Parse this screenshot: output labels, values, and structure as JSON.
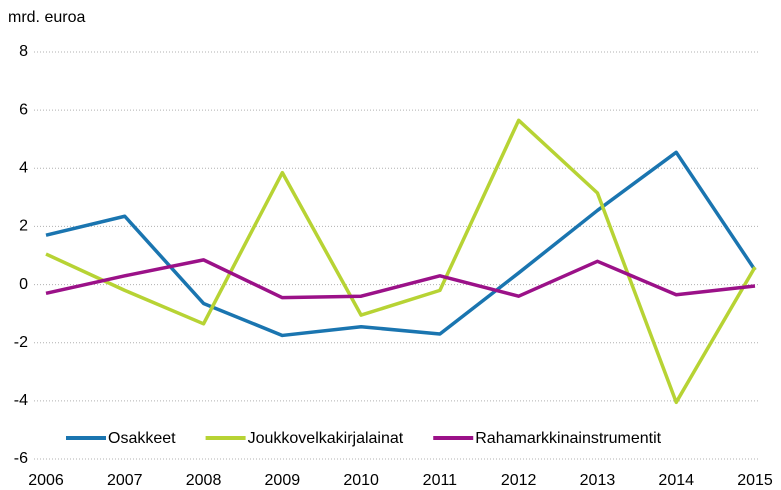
{
  "chart_data": {
    "type": "line",
    "y_label": "mrd. euroa",
    "x": [
      2006,
      2007,
      2008,
      2009,
      2010,
      2011,
      2012,
      2013,
      2014,
      2015
    ],
    "xlim": [
      2006,
      2015
    ],
    "xticks": [
      2006,
      2007,
      2008,
      2009,
      2010,
      2011,
      2012,
      2013,
      2014,
      2015
    ],
    "ylim": [
      -6,
      8
    ],
    "yticks": [
      -6,
      -4,
      -2,
      0,
      2,
      4,
      6,
      8
    ],
    "grid": true,
    "legend": "bottom",
    "series": [
      {
        "name": "Osakkeet",
        "color": "#1a75b0",
        "values": [
          1.7,
          2.35,
          -0.65,
          -1.75,
          -1.45,
          -1.7,
          0.4,
          2.55,
          4.55,
          0.5
        ]
      },
      {
        "name": "Joukkovelkakirjalainat",
        "color": "#b7d334",
        "values": [
          1.05,
          -0.2,
          -1.35,
          3.85,
          -1.05,
          -0.2,
          5.65,
          3.15,
          -4.05,
          0.6
        ]
      },
      {
        "name": "Rahamarkkinainstrumentit",
        "color": "#9b1188",
        "values": [
          -0.3,
          0.3,
          0.85,
          -0.45,
          -0.4,
          0.3,
          -0.4,
          0.8,
          -0.35,
          -0.05
        ]
      }
    ]
  }
}
